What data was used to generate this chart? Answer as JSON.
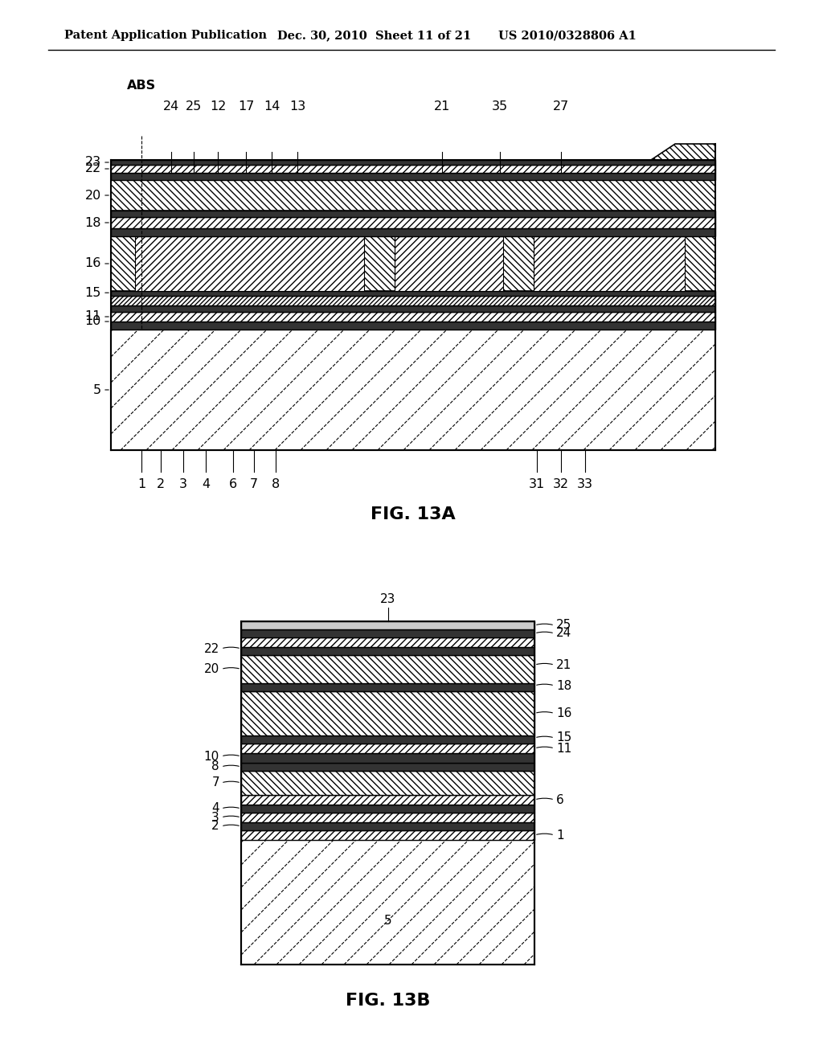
{
  "header_left": "Patent Application Publication",
  "header_middle": "Dec. 30, 2010  Sheet 11 of 21",
  "header_right": "US 2010/0328806 A1",
  "fig_a_title": "FIG. 13A",
  "fig_b_title": "FIG. 13B",
  "background_color": "#ffffff",
  "line_color": "#000000"
}
